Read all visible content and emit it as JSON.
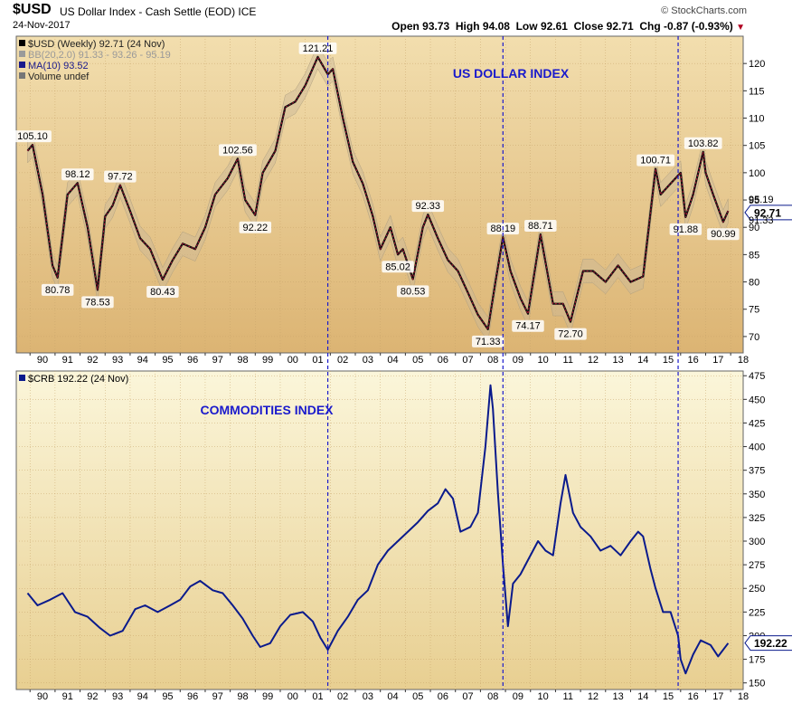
{
  "header": {
    "symbol": "$USD",
    "description": "US Dollar Index - Cash Settle (EOD) ICE",
    "date": "24-Nov-2017",
    "brand": "© StockCharts.com",
    "open_label": "Open",
    "open": "93.73",
    "high_label": "High",
    "high": "94.08",
    "low_label": "Low",
    "low": "92.61",
    "close_label": "Close",
    "close": "92.71",
    "chg_label": "Chg",
    "chg": "-0.87 (-0.93%)",
    "down_arrow": "▼"
  },
  "chart_data": [
    {
      "type": "line",
      "panel": "top",
      "legend": [
        "$USD (Weekly) 92.71 (24 Nov)",
        "BB(20,2.0) 91.33 - 93.26 - 95.19",
        "MA(10) 93.52",
        "Volume undef"
      ],
      "annotation": "US DOLLAR INDEX",
      "ylim": [
        67,
        125
      ],
      "yticks": [
        70,
        75,
        80,
        85,
        90,
        95,
        100,
        105,
        110,
        115,
        120
      ],
      "x_ticks": [
        "90",
        "91",
        "92",
        "93",
        "94",
        "95",
        "96",
        "97",
        "98",
        "99",
        "00",
        "01",
        "02",
        "03",
        "04",
        "05",
        "06",
        "07",
        "08",
        "09",
        "10",
        "11",
        "12",
        "13",
        "14",
        "15",
        "16",
        "17",
        "18"
      ],
      "x": [
        1989.9,
        1990.1,
        1990.5,
        1990.9,
        1991.1,
        1991.5,
        1991.9,
        1992.3,
        1992.7,
        1993.0,
        1993.3,
        1993.6,
        1994.0,
        1994.4,
        1994.8,
        1995.3,
        1995.7,
        1996.1,
        1996.6,
        1997.0,
        1997.4,
        1997.9,
        1998.3,
        1998.6,
        1999.0,
        1999.3,
        1999.8,
        2000.2,
        2000.6,
        2001.0,
        2001.5,
        2001.9,
        2002.1,
        2002.5,
        2002.9,
        2003.3,
        2003.7,
        2004.0,
        2004.4,
        2004.7,
        2004.9,
        2005.3,
        2005.7,
        2005.9,
        2006.3,
        2006.7,
        2007.1,
        2007.5,
        2007.9,
        2008.3,
        2008.6,
        2008.9,
        2009.2,
        2009.6,
        2009.9,
        2010.4,
        2010.9,
        2011.3,
        2011.6,
        2012.1,
        2012.5,
        2013.0,
        2013.5,
        2014.0,
        2014.5,
        2015.0,
        2015.2,
        2015.6,
        2016.0,
        2016.2,
        2016.5,
        2016.9,
        2017.0,
        2017.3,
        2017.7,
        2017.9
      ],
      "y": [
        104,
        105.1,
        96,
        83,
        80.78,
        96,
        98.12,
        90,
        78.53,
        92,
        94,
        97.72,
        93,
        88,
        86,
        80.43,
        84,
        87,
        86,
        90,
        96,
        99,
        102.56,
        95,
        92.22,
        100,
        104,
        112,
        113,
        116,
        121.21,
        118,
        119,
        110,
        102,
        98,
        92,
        86,
        90,
        85.02,
        86,
        80.53,
        90,
        92.33,
        88,
        84,
        82,
        78,
        74,
        71.33,
        80,
        88.19,
        82,
        77,
        74.17,
        88.71,
        76,
        76,
        72.7,
        82,
        82,
        80,
        83,
        80,
        81,
        100.71,
        96,
        98,
        100,
        91.88,
        96,
        103.82,
        100,
        96,
        90.99,
        93
      ],
      "labels": [
        {
          "x": 1990.1,
          "y": 105.1,
          "text": "105.10",
          "pos": "above"
        },
        {
          "x": 1991.1,
          "y": 80.78,
          "text": "80.78",
          "pos": "below"
        },
        {
          "x": 1991.9,
          "y": 98.12,
          "text": "98.12",
          "pos": "above"
        },
        {
          "x": 1992.7,
          "y": 78.53,
          "text": "78.53",
          "pos": "below"
        },
        {
          "x": 1993.6,
          "y": 97.72,
          "text": "97.72",
          "pos": "above"
        },
        {
          "x": 1995.3,
          "y": 80.43,
          "text": "80.43",
          "pos": "below"
        },
        {
          "x": 1998.3,
          "y": 102.56,
          "text": "102.56",
          "pos": "above"
        },
        {
          "x": 1999.0,
          "y": 92.22,
          "text": "92.22",
          "pos": "below"
        },
        {
          "x": 2001.5,
          "y": 121.21,
          "text": "121.21",
          "pos": "above"
        },
        {
          "x": 2004.7,
          "y": 85.02,
          "text": "85.02",
          "pos": "below"
        },
        {
          "x": 2005.3,
          "y": 80.53,
          "text": "80.53",
          "pos": "below"
        },
        {
          "x": 2005.9,
          "y": 92.33,
          "text": "92.33",
          "pos": "above"
        },
        {
          "x": 2008.3,
          "y": 71.33,
          "text": "71.33",
          "pos": "below"
        },
        {
          "x": 2008.9,
          "y": 88.19,
          "text": "88.19",
          "pos": "above"
        },
        {
          "x": 2009.9,
          "y": 74.17,
          "text": "74.17",
          "pos": "below"
        },
        {
          "x": 2010.4,
          "y": 88.71,
          "text": "88.71",
          "pos": "above"
        },
        {
          "x": 2011.6,
          "y": 72.7,
          "text": "72.70",
          "pos": "below"
        },
        {
          "x": 2015.0,
          "y": 100.71,
          "text": "100.71",
          "pos": "above"
        },
        {
          "x": 2016.2,
          "y": 91.88,
          "text": "91.88",
          "pos": "below"
        },
        {
          "x": 2016.9,
          "y": 103.82,
          "text": "103.82",
          "pos": "above"
        },
        {
          "x": 2017.7,
          "y": 90.99,
          "text": "90.99",
          "pos": "below"
        }
      ],
      "right_labels": [
        {
          "y": 95.19,
          "text": "95.19"
        },
        {
          "y": 92.71,
          "text": "92.71",
          "boxed": true
        },
        {
          "y": 91.33,
          "text": "91.33"
        }
      ]
    },
    {
      "type": "line",
      "panel": "bottom",
      "legend": [
        "$CRB 192.22 (24 Nov)"
      ],
      "annotation": "COMMODITIES INDEX",
      "ylim": [
        143,
        480
      ],
      "yticks": [
        150,
        175,
        200,
        225,
        250,
        275,
        300,
        325,
        350,
        375,
        400,
        425,
        450,
        475
      ],
      "x_ticks": [
        "90",
        "91",
        "92",
        "93",
        "94",
        "95",
        "96",
        "97",
        "98",
        "99",
        "00",
        "01",
        "02",
        "03",
        "04",
        "05",
        "06",
        "07",
        "08",
        "09",
        "10",
        "11",
        "12",
        "13",
        "14",
        "15",
        "16",
        "17",
        "18"
      ],
      "x": [
        1989.9,
        1990.3,
        1990.8,
        1991.3,
        1991.8,
        1992.3,
        1992.8,
        1993.2,
        1993.7,
        1994.2,
        1994.6,
        1995.1,
        1995.6,
        1996.0,
        1996.4,
        1996.8,
        1997.3,
        1997.7,
        1998.1,
        1998.5,
        1998.9,
        1999.2,
        1999.6,
        2000.0,
        2000.4,
        2000.9,
        2001.3,
        2001.6,
        2001.9,
        2002.3,
        2002.7,
        2003.1,
        2003.5,
        2003.9,
        2004.3,
        2004.7,
        2005.1,
        2005.5,
        2005.9,
        2006.3,
        2006.6,
        2006.9,
        2007.2,
        2007.6,
        2007.9,
        2008.2,
        2008.4,
        2008.5,
        2008.7,
        2008.9,
        2009.1,
        2009.3,
        2009.6,
        2009.9,
        2010.3,
        2010.6,
        2010.9,
        2011.2,
        2011.4,
        2011.7,
        2012.0,
        2012.4,
        2012.8,
        2013.2,
        2013.6,
        2014.0,
        2014.3,
        2014.5,
        2014.8,
        2015.0,
        2015.3,
        2015.6,
        2015.9,
        2016.0,
        2016.2,
        2016.5,
        2016.8,
        2017.2,
        2017.5,
        2017.9
      ],
      "y": [
        245,
        232,
        238,
        245,
        225,
        220,
        208,
        200,
        205,
        228,
        232,
        225,
        232,
        238,
        252,
        258,
        248,
        245,
        232,
        218,
        200,
        188,
        192,
        210,
        222,
        225,
        215,
        198,
        185,
        205,
        220,
        238,
        248,
        275,
        290,
        300,
        310,
        320,
        332,
        340,
        355,
        345,
        310,
        315,
        330,
        400,
        465,
        440,
        350,
        275,
        210,
        255,
        265,
        280,
        300,
        290,
        285,
        340,
        370,
        330,
        315,
        305,
        290,
        295,
        285,
        300,
        310,
        305,
        270,
        250,
        225,
        225,
        200,
        175,
        160,
        180,
        195,
        190,
        178,
        192
      ],
      "right_labels": [
        {
          "y": 192.22,
          "text": "192.22",
          "boxed": true
        }
      ]
    }
  ],
  "vlines_x": [
    2001.9,
    2008.9,
    2015.9
  ]
}
